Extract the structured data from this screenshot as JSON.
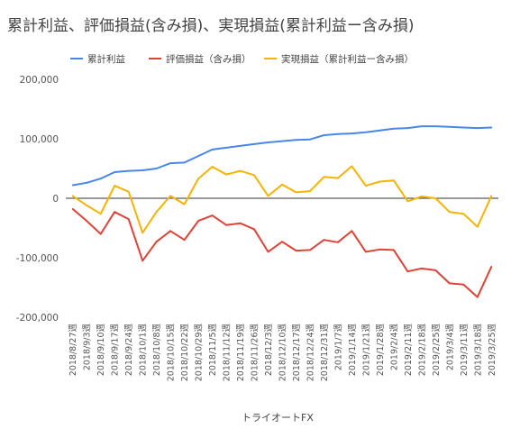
{
  "chart_data": {
    "type": "line",
    "title": "累計利益、評価損益(含み損)、実現損益(累計利益ー含み損)",
    "xlabel": "トライオートFX",
    "ylabel": "",
    "ylim": [
      -200000,
      200000
    ],
    "yticks": [
      -200000,
      -100000,
      0,
      100000,
      200000
    ],
    "ytick_labels": [
      "-200,000",
      "-100,000",
      "0",
      "100,000",
      "200,000"
    ],
    "legend_position": "top",
    "grid": false,
    "x": [
      "2018/8/27週",
      "2018/9/3週",
      "2018/9/10週",
      "2018/9/17週",
      "2018/9/24週",
      "2018/10/1週",
      "2018/10/8週",
      "2018/10/15週",
      "2018/10/22週",
      "2018/10/29週",
      "2018/11/5週",
      "2018/11/12週",
      "2018/11/19週",
      "2018/11/26週",
      "2018/12/3週",
      "2018/12/10週",
      "2018/12/17週",
      "2018/12/24週",
      "2018/12/31週",
      "2019/1/7週",
      "2019/1/14週",
      "2019/1/21週",
      "2019/1/28週",
      "2019/2/4週",
      "2019/2/11週",
      "2019/2/18週",
      "2019/2/25週",
      "2019/3/4週",
      "2019/3/11週",
      "2019/3/18週",
      "2019/3/25週"
    ],
    "x_tick_labels": [
      "2018/8/27週",
      "2018/9/3週",
      "2018/9/10週",
      "2018/9/17週",
      "2018/9/24週",
      "2018/10/1週",
      "2018/10/8週",
      "2018/10/15週",
      "2018/10/22週",
      "2018/10/29週",
      "2018/11/5週",
      "2018/11/12週",
      "2018/11/19週",
      "2018/11/26週",
      "2018/12/3週",
      "2018/12/10週",
      "2018/12/17週",
      "2018/12/24週",
      "2018/12/31週",
      "2019/1/7週",
      "2019/1/14週",
      "2019/1/21週",
      "2019/1/28週",
      "2019/2/4週",
      "2019/2/11週",
      "2019/2/18週",
      "2019/2/25週",
      "2019/3/4週",
      "2019/3/11週",
      "2019/3/18週",
      "2019/3/25週"
    ],
    "series": [
      {
        "name": "累計利益",
        "color": "#4a86e8",
        "values": [
          22000,
          26000,
          33000,
          44000,
          46000,
          47000,
          50000,
          59000,
          60000,
          71000,
          82000,
          85000,
          88000,
          91000,
          94000,
          96000,
          98000,
          99000,
          106000,
          108000,
          109000,
          111000,
          114000,
          117000,
          118000,
          121000,
          121000,
          120000,
          119000,
          118000,
          119000
        ]
      },
      {
        "name": "評価損益（含み損）",
        "color": "#db4437",
        "values": [
          -18000,
          -38000,
          -60000,
          -23000,
          -35000,
          -105000,
          -73000,
          -55000,
          -70000,
          -38000,
          -29000,
          -45000,
          -42000,
          -52000,
          -90000,
          -73000,
          -88000,
          -87000,
          -70000,
          -74000,
          -55000,
          -90000,
          -86000,
          -87000,
          -123000,
          -118000,
          -121000,
          -143000,
          -145000,
          -166000,
          -115000
        ]
      },
      {
        "name": "実現損益（累計利益ー含み損）",
        "color": "#f4b400",
        "values": [
          4000,
          -12000,
          -26000,
          21000,
          11000,
          -58000,
          -23000,
          4000,
          -10000,
          33000,
          53000,
          40000,
          46000,
          39000,
          4000,
          23000,
          10000,
          12000,
          36000,
          34000,
          54000,
          21000,
          28000,
          30000,
          -5000,
          3000,
          0,
          -23000,
          -26000,
          -48000,
          4000
        ]
      }
    ]
  }
}
